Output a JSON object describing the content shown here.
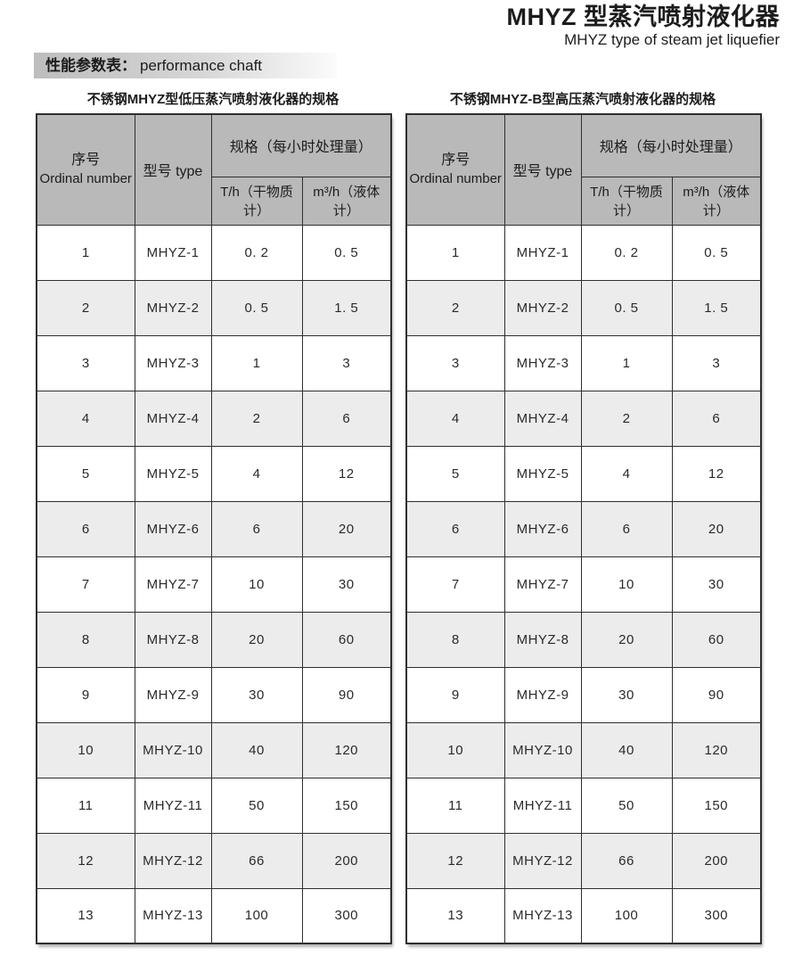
{
  "header": {
    "title_cn": "MHYZ 型蒸汽喷射液化器",
    "title_en": "MHYZ type of steam jet liquefier"
  },
  "section": {
    "label_cn": "性能参数表：",
    "label_en": "performance chaft"
  },
  "colors": {
    "table_header_bg": "#b9b9b9",
    "row_alt_bg": "#ececec",
    "table_border": "#2f2f2f",
    "section_bar_gradient_start": "#bdbdbd",
    "section_bar_gradient_end": "#fbfbfb"
  },
  "tables": [
    {
      "caption": "不锈钢MHYZ型低压蒸汽喷射液化器的规格",
      "headers": {
        "ordinal_line1": "序号",
        "ordinal_line2": "Ordinal number",
        "type": "型号 type",
        "spec_group": "规格（每小时处理量）",
        "col_th": "T/h（干物质计）",
        "col_m3h": "m³/h（液体计）"
      },
      "rows": [
        [
          "1",
          "MHYZ-1",
          "0. 2",
          "0. 5"
        ],
        [
          "2",
          "MHYZ-2",
          "0. 5",
          "1. 5"
        ],
        [
          "3",
          "MHYZ-3",
          "1",
          "3"
        ],
        [
          "4",
          "MHYZ-4",
          "2",
          "6"
        ],
        [
          "5",
          "MHYZ-5",
          "4",
          "12"
        ],
        [
          "6",
          "MHYZ-6",
          "6",
          "20"
        ],
        [
          "7",
          "MHYZ-7",
          "10",
          "30"
        ],
        [
          "8",
          "MHYZ-8",
          "20",
          "60"
        ],
        [
          "9",
          "MHYZ-9",
          "30",
          "90"
        ],
        [
          "10",
          "MHYZ-10",
          "40",
          "120"
        ],
        [
          "11",
          "MHYZ-11",
          "50",
          "150"
        ],
        [
          "12",
          "MHYZ-12",
          "66",
          "200"
        ],
        [
          "13",
          "MHYZ-13",
          "100",
          "300"
        ]
      ]
    },
    {
      "caption": "不锈钢MHYZ-B型高压蒸汽喷射液化器的规格",
      "headers": {
        "ordinal_line1": "序号",
        "ordinal_line2": "Ordinal number",
        "type": "型号 type",
        "spec_group": "规格（每小时处理量）",
        "col_th": "T/h（干物质计）",
        "col_m3h": "m³/h（液体计）"
      },
      "rows": [
        [
          "1",
          "MHYZ-1",
          "0. 2",
          "0. 5"
        ],
        [
          "2",
          "MHYZ-2",
          "0. 5",
          "1. 5"
        ],
        [
          "3",
          "MHYZ-3",
          "1",
          "3"
        ],
        [
          "4",
          "MHYZ-4",
          "2",
          "6"
        ],
        [
          "5",
          "MHYZ-5",
          "4",
          "12"
        ],
        [
          "6",
          "MHYZ-6",
          "6",
          "20"
        ],
        [
          "7",
          "MHYZ-7",
          "10",
          "30"
        ],
        [
          "8",
          "MHYZ-8",
          "20",
          "60"
        ],
        [
          "9",
          "MHYZ-9",
          "30",
          "90"
        ],
        [
          "10",
          "MHYZ-10",
          "40",
          "120"
        ],
        [
          "11",
          "MHYZ-11",
          "50",
          "150"
        ],
        [
          "12",
          "MHYZ-12",
          "66",
          "200"
        ],
        [
          "13",
          "MHYZ-13",
          "100",
          "300"
        ]
      ]
    }
  ]
}
